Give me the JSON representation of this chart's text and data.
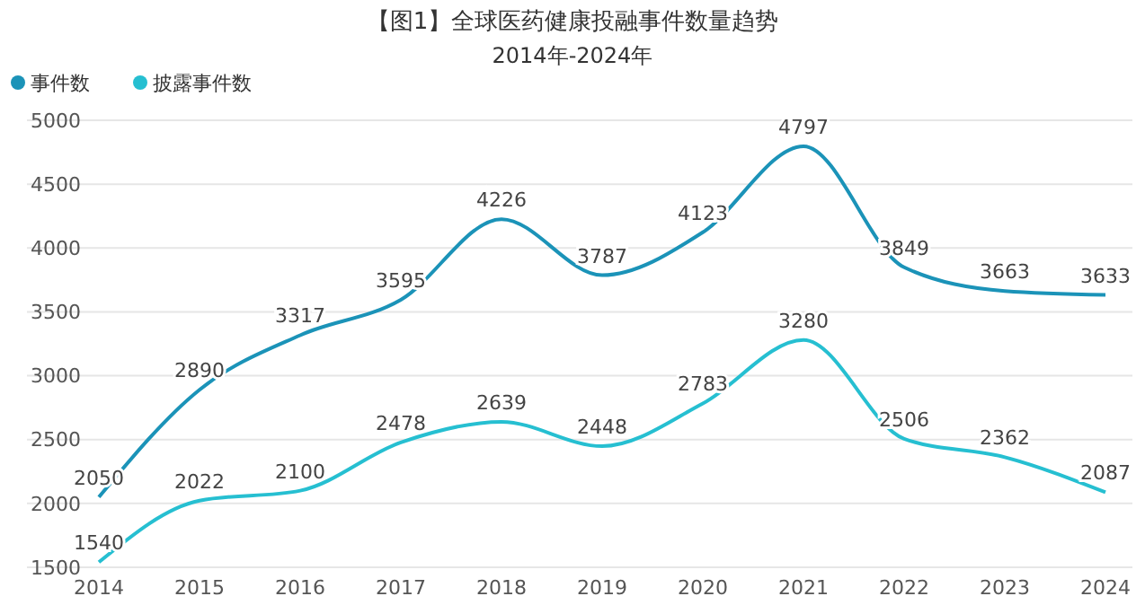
{
  "chart_data": {
    "type": "line",
    "title": "【图1】全球医药健康投融事件数量趋势",
    "subtitle": "2014年-2024年",
    "categories": [
      "2014",
      "2015",
      "2016",
      "2017",
      "2018",
      "2019",
      "2020",
      "2021",
      "2022",
      "2023",
      "2024"
    ],
    "series": [
      {
        "name": "事件数",
        "color": "#1b93b8",
        "values": [
          2050,
          2890,
          3317,
          3595,
          4226,
          3787,
          4123,
          4797,
          3849,
          3663,
          3633
        ]
      },
      {
        "name": "披露事件数",
        "color": "#26bfd1",
        "values": [
          1540,
          2022,
          2100,
          2478,
          2639,
          2448,
          2783,
          3280,
          2506,
          2362,
          2087
        ]
      }
    ],
    "ylim": [
      1500,
      5000
    ],
    "yticks": [
      1500,
      2000,
      2500,
      3000,
      3500,
      4000,
      4500,
      5000
    ],
    "grid": "y",
    "legend": "top left",
    "marker": "none",
    "line_style": "solid",
    "data_labels": true
  }
}
